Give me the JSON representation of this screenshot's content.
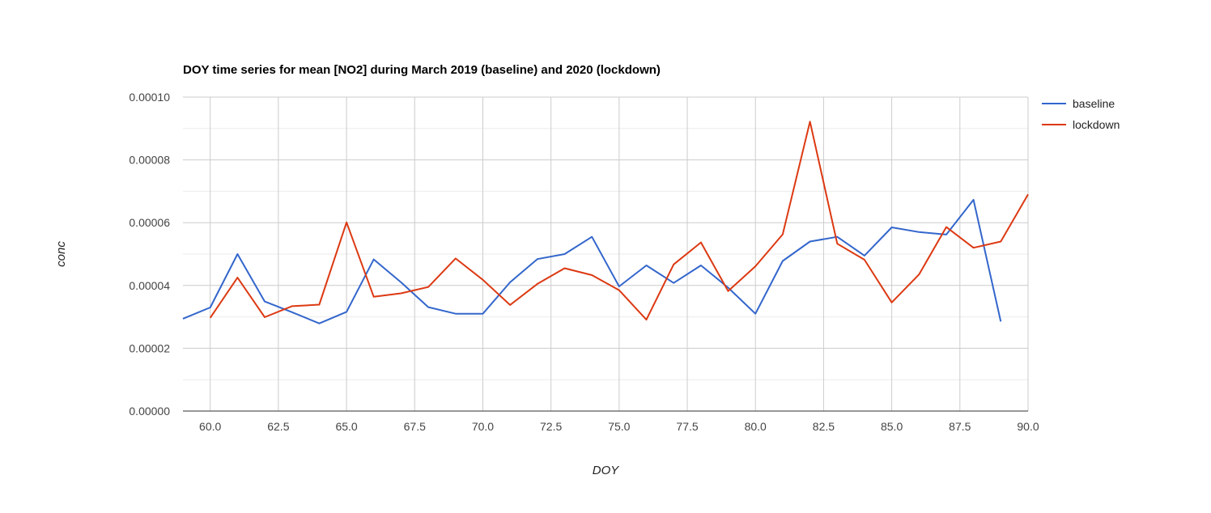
{
  "chart_data": {
    "type": "line",
    "title": "DOY time series for mean [NO2] during March 2019 (baseline) and 2020 (lockdown)",
    "xlabel": "DOY",
    "ylabel": "conc",
    "xlim": [
      59,
      90
    ],
    "ylim": [
      0,
      0.0001
    ],
    "x_ticks": [
      "60.0",
      "62.5",
      "65.0",
      "67.5",
      "70.0",
      "72.5",
      "75.0",
      "77.5",
      "80.0",
      "82.5",
      "85.0",
      "87.5",
      "90.0"
    ],
    "y_ticks": [
      "0.00000",
      "0.00002",
      "0.00004",
      "0.00006",
      "0.00008",
      "0.00010"
    ],
    "grid": true,
    "legend_position": "right",
    "series": [
      {
        "name": "baseline",
        "color": "#3366cc",
        "points": [
          [
            59,
            2.94e-05
          ],
          [
            60,
            3.3e-05
          ],
          [
            61,
            5e-05
          ],
          [
            62,
            3.49e-05
          ],
          [
            63,
            3.15e-05
          ],
          [
            64,
            2.79e-05
          ],
          [
            65,
            3.16e-05
          ],
          [
            66,
            4.83e-05
          ],
          [
            67,
            4.1e-05
          ],
          [
            68,
            3.31e-05
          ],
          [
            69,
            3.1e-05
          ],
          [
            70,
            3.1e-05
          ],
          [
            71,
            4.1e-05
          ],
          [
            72,
            4.84e-05
          ],
          [
            73,
            5e-05
          ],
          [
            74,
            5.55e-05
          ],
          [
            75,
            3.97e-05
          ],
          [
            76,
            4.64e-05
          ],
          [
            77,
            4.08e-05
          ],
          [
            78,
            4.64e-05
          ],
          [
            79,
            3.93e-05
          ],
          [
            80,
            3.1e-05
          ],
          [
            81,
            4.78e-05
          ],
          [
            82,
            5.4e-05
          ],
          [
            83,
            5.55e-05
          ],
          [
            84,
            4.95e-05
          ],
          [
            85,
            5.85e-05
          ],
          [
            86,
            5.7e-05
          ],
          [
            87,
            5.62e-05
          ],
          [
            88,
            6.73e-05
          ],
          [
            89,
            2.85e-05
          ]
        ]
      },
      {
        "name": "lockdown",
        "color": "#dc3912",
        "points": [
          [
            60,
            2.97e-05
          ],
          [
            61,
            4.25e-05
          ],
          [
            62,
            2.99e-05
          ],
          [
            63,
            3.34e-05
          ],
          [
            64,
            3.39e-05
          ],
          [
            65,
            6.01e-05
          ],
          [
            66,
            3.64e-05
          ],
          [
            67,
            3.75e-05
          ],
          [
            68,
            3.95e-05
          ],
          [
            69,
            4.86e-05
          ],
          [
            70,
            4.18e-05
          ],
          [
            71,
            3.38e-05
          ],
          [
            72,
            4.05e-05
          ],
          [
            73,
            4.55e-05
          ],
          [
            74,
            4.33e-05
          ],
          [
            75,
            3.85e-05
          ],
          [
            76,
            2.91e-05
          ],
          [
            77,
            4.67e-05
          ],
          [
            78,
            5.37e-05
          ],
          [
            79,
            3.82e-05
          ],
          [
            80,
            4.61e-05
          ],
          [
            81,
            5.63e-05
          ],
          [
            82,
            9.22e-05
          ],
          [
            83,
            5.33e-05
          ],
          [
            84,
            4.82e-05
          ],
          [
            85,
            3.46e-05
          ],
          [
            86,
            4.35e-05
          ],
          [
            87,
            5.86e-05
          ],
          [
            88,
            5.2e-05
          ],
          [
            89,
            5.4e-05
          ],
          [
            90,
            6.9e-05
          ]
        ]
      }
    ]
  }
}
